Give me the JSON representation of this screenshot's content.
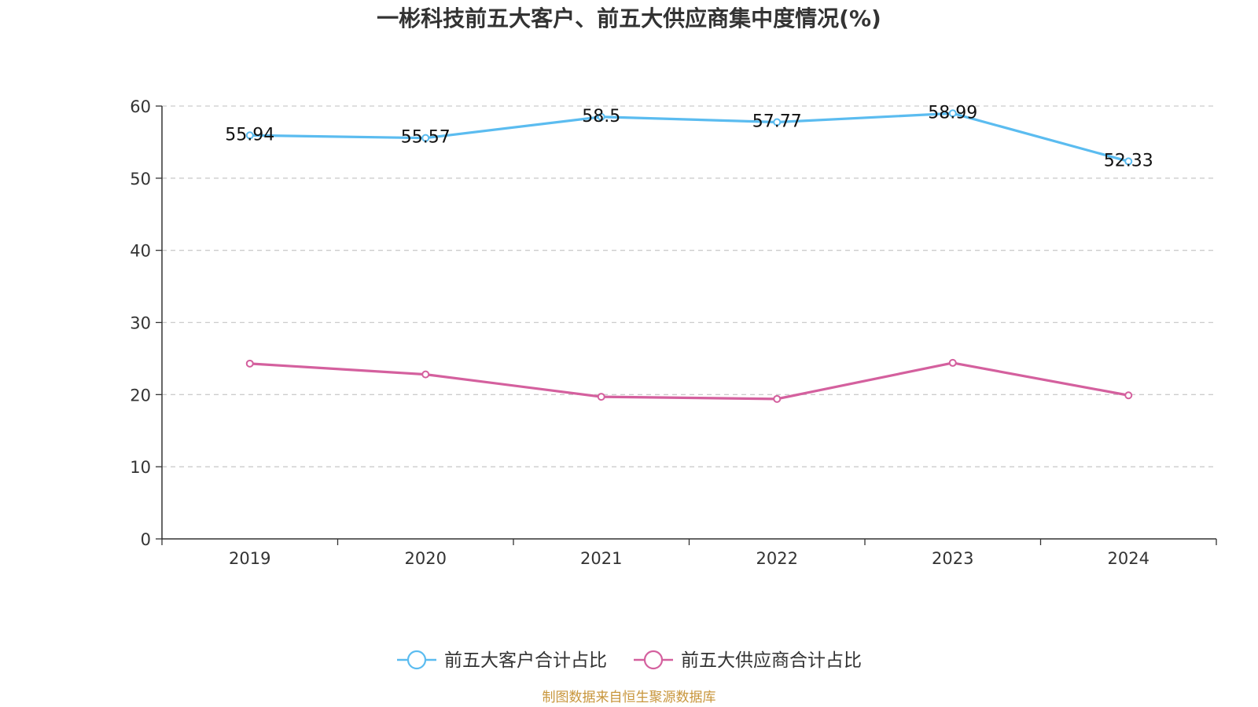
{
  "chart_data": {
    "type": "line",
    "title": "一彬科技前五大客户、前五大供应商集中度情况(%)",
    "categories": [
      "2019",
      "2020",
      "2021",
      "2022",
      "2023",
      "2024"
    ],
    "ylim": [
      0,
      60
    ],
    "yticks": [
      "0",
      "10",
      "20",
      "30",
      "40",
      "50",
      "60"
    ],
    "grid": true,
    "legend_position": "bottom",
    "series": [
      {
        "name": "前五大客户合计占比",
        "color": "#5bbcf0",
        "values": [
          55.94,
          55.57,
          58.5,
          57.77,
          58.99,
          52.33
        ],
        "labels": [
          "55.94",
          "55.57",
          "58.5",
          "57.77",
          "58.99",
          "52.33"
        ]
      },
      {
        "name": "前五大供应商合计占比",
        "color": "#d4609e",
        "values": [
          24.3,
          22.8,
          19.7,
          19.4,
          24.4,
          19.9
        ]
      }
    ],
    "source": "制图数据来自恒生聚源数据库"
  }
}
